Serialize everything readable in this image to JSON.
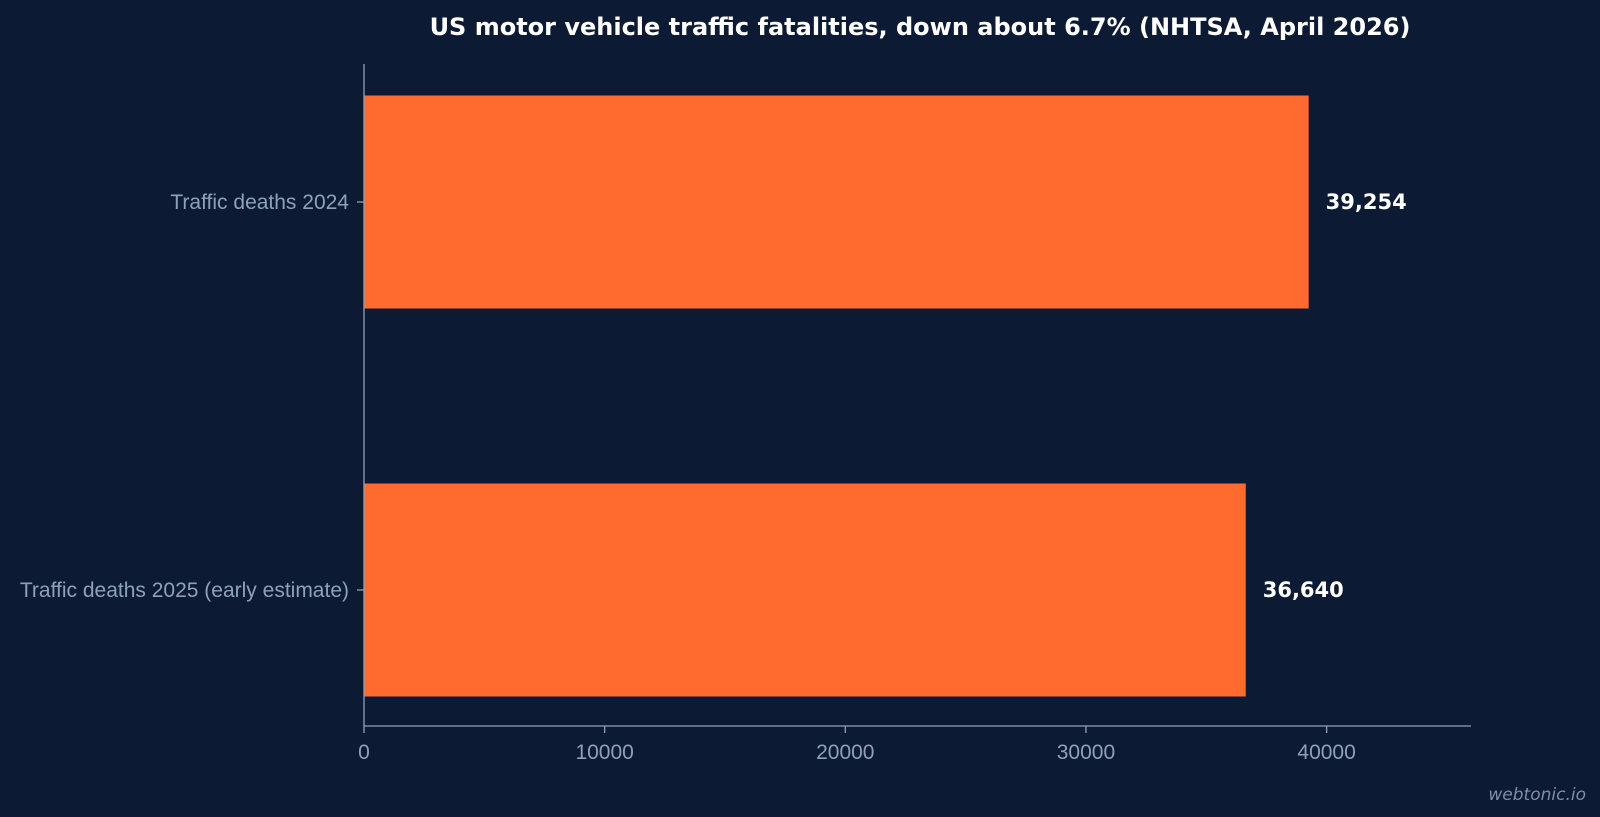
{
  "chart_data": {
    "type": "bar",
    "orientation": "horizontal",
    "title": "US motor vehicle traffic fatalities, down about 6.7% (NHTSA, April 2026)",
    "categories": [
      "Traffic deaths 2024",
      "Traffic deaths 2025 (early estimate)"
    ],
    "values": [
      39254,
      36640
    ],
    "data_labels": [
      "39,254",
      "36,640"
    ],
    "xlim": [
      0,
      46000
    ],
    "xticks": [
      0,
      10000,
      20000,
      30000,
      40000
    ],
    "xtick_labels": [
      "0",
      "10000",
      "20000",
      "30000",
      "40000"
    ],
    "xlabel": "",
    "ylabel": "",
    "grid": false,
    "bar_color": "#ff6b2f",
    "background_color": "#0c1b33",
    "axis_color": "#8ea1ba"
  },
  "watermark": "webtonic.io"
}
